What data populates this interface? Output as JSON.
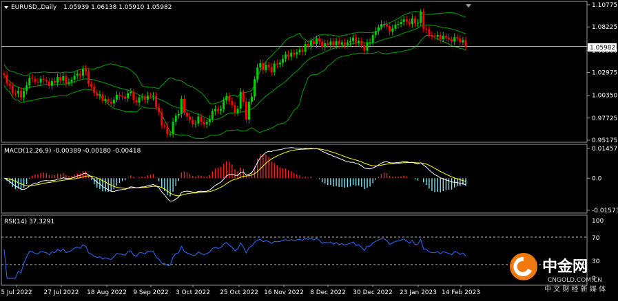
{
  "chart_data": [
    {
      "type": "candlestick",
      "panel": "price",
      "header": {
        "symbol_label": "EURUSD,,Daily",
        "ohlc_text": "1.05939 1.06138 1.05910 1.05982"
      },
      "current_price_label": "1.05982",
      "y_ticks": [
        "1.10775",
        "1.08225",
        "1.05500",
        "1.02975",
        "1.00350",
        "0.97725",
        "0.95175"
      ],
      "ylim": [
        0.95175,
        1.10775
      ],
      "bollinger_bands": true,
      "x_start": "2022-07-05",
      "x_end": "2023-02-23",
      "colors": {
        "up": "#00d000",
        "down": "#ff0000",
        "bands": "#00a000",
        "price_line": "#b0b0b0"
      },
      "closes": [
        1.027,
        1.017,
        1.0145,
        1.006,
        1.0055,
        1.0085,
        1.001,
        1.0085,
        1.015,
        1.0235,
        1.0225,
        1.019,
        1.018,
        1.0225,
        1.021,
        1.0195,
        1.0145,
        1.02,
        1.018,
        1.0245,
        1.0205,
        1.0255,
        1.017,
        1.0185,
        1.0215,
        1.026,
        1.0285,
        1.026,
        1.034,
        1.031,
        1.0165,
        1.0135,
        1.0065,
        1.003,
        1.0045,
        0.997,
        0.999,
        0.996,
        0.994,
        0.9985,
        1.004,
        1.003,
        1.002,
        1.0,
        1.006,
        1.0075,
        0.998,
        0.995,
        1.001,
        1.001,
        0.9985,
        1.003,
        1.002,
        1.003,
        0.99,
        0.984,
        0.969,
        0.968,
        0.959,
        0.959,
        0.973,
        0.98,
        0.982,
        0.9995,
        0.9835,
        0.979,
        0.975,
        0.9705,
        0.971,
        0.979,
        0.973,
        0.97,
        0.9725,
        0.976,
        0.985,
        0.9875,
        0.9855,
        0.9875,
        0.9975,
        1.0025,
        0.997,
        0.992,
        0.9835,
        0.988,
        1.0075,
        0.996,
        0.9755,
        0.996,
        1.002,
        1.022,
        1.0355,
        1.0405,
        1.0325,
        1.0385,
        1.036,
        1.03,
        1.04,
        1.039,
        1.041,
        1.0455,
        1.0505,
        1.048,
        1.0525,
        1.0505,
        1.053,
        1.056,
        1.0535,
        1.0625,
        1.06,
        1.0665,
        1.0625,
        1.069,
        1.0655,
        1.059,
        1.0635,
        1.0615,
        1.0655,
        1.061,
        1.066,
        1.062,
        1.0645,
        1.062,
        1.0645,
        1.066,
        1.07,
        1.064,
        1.066,
        1.061,
        1.055,
        1.0645,
        1.0645,
        1.073,
        1.0775,
        1.082,
        1.0855,
        1.0855,
        1.083,
        1.077,
        1.0805,
        1.085,
        1.0855,
        1.088,
        1.091,
        1.0885,
        1.0855,
        1.092,
        1.086,
        1.087,
        1.099,
        1.08,
        1.0795,
        1.073,
        1.0715,
        1.071,
        1.073,
        1.068,
        1.072,
        1.07,
        1.068,
        1.0655,
        1.0705,
        1.069,
        1.0645,
        1.067,
        1.0598
      ],
      "x_tick_labels": [
        "5 Jul 2022",
        "27 Jul 2022",
        "18 Aug 2022",
        "9 Sep 2022",
        "3 Oct 2022",
        "25 Oct 2022",
        "16 Nov 2022",
        "8 Dec 2022",
        "30 Dec 2022",
        "23 Jan 2023",
        "14 Feb 2023"
      ]
    },
    {
      "type": "histogram+line",
      "panel": "macd",
      "header": "MACD(12,26,9) -0.00389 -0.00180 -0.00418",
      "y_ticks": [
        "0.01457",
        "0.0",
        "-0.01573"
      ],
      "ylim": [
        -0.01573,
        0.01457
      ],
      "colors": {
        "hist_pos": "#ff2020",
        "hist_neg": "#7fe8f5",
        "signal": "#ffff00",
        "macd": "#ffffff"
      }
    },
    {
      "type": "line",
      "panel": "rsi",
      "header": "RSI(14) 37.3291",
      "y_ticks": [
        "100",
        "70",
        "30",
        "0"
      ],
      "ylim": [
        0,
        100
      ],
      "levels": [
        70,
        30
      ],
      "colors": {
        "line": "#2f6bff",
        "level": "#c0c0c0"
      }
    }
  ],
  "watermark": {
    "brand_cn": "中金网",
    "domain": "CNGOLD.COM.CN",
    "tagline": "中 文 财 经 新 媒 体"
  }
}
